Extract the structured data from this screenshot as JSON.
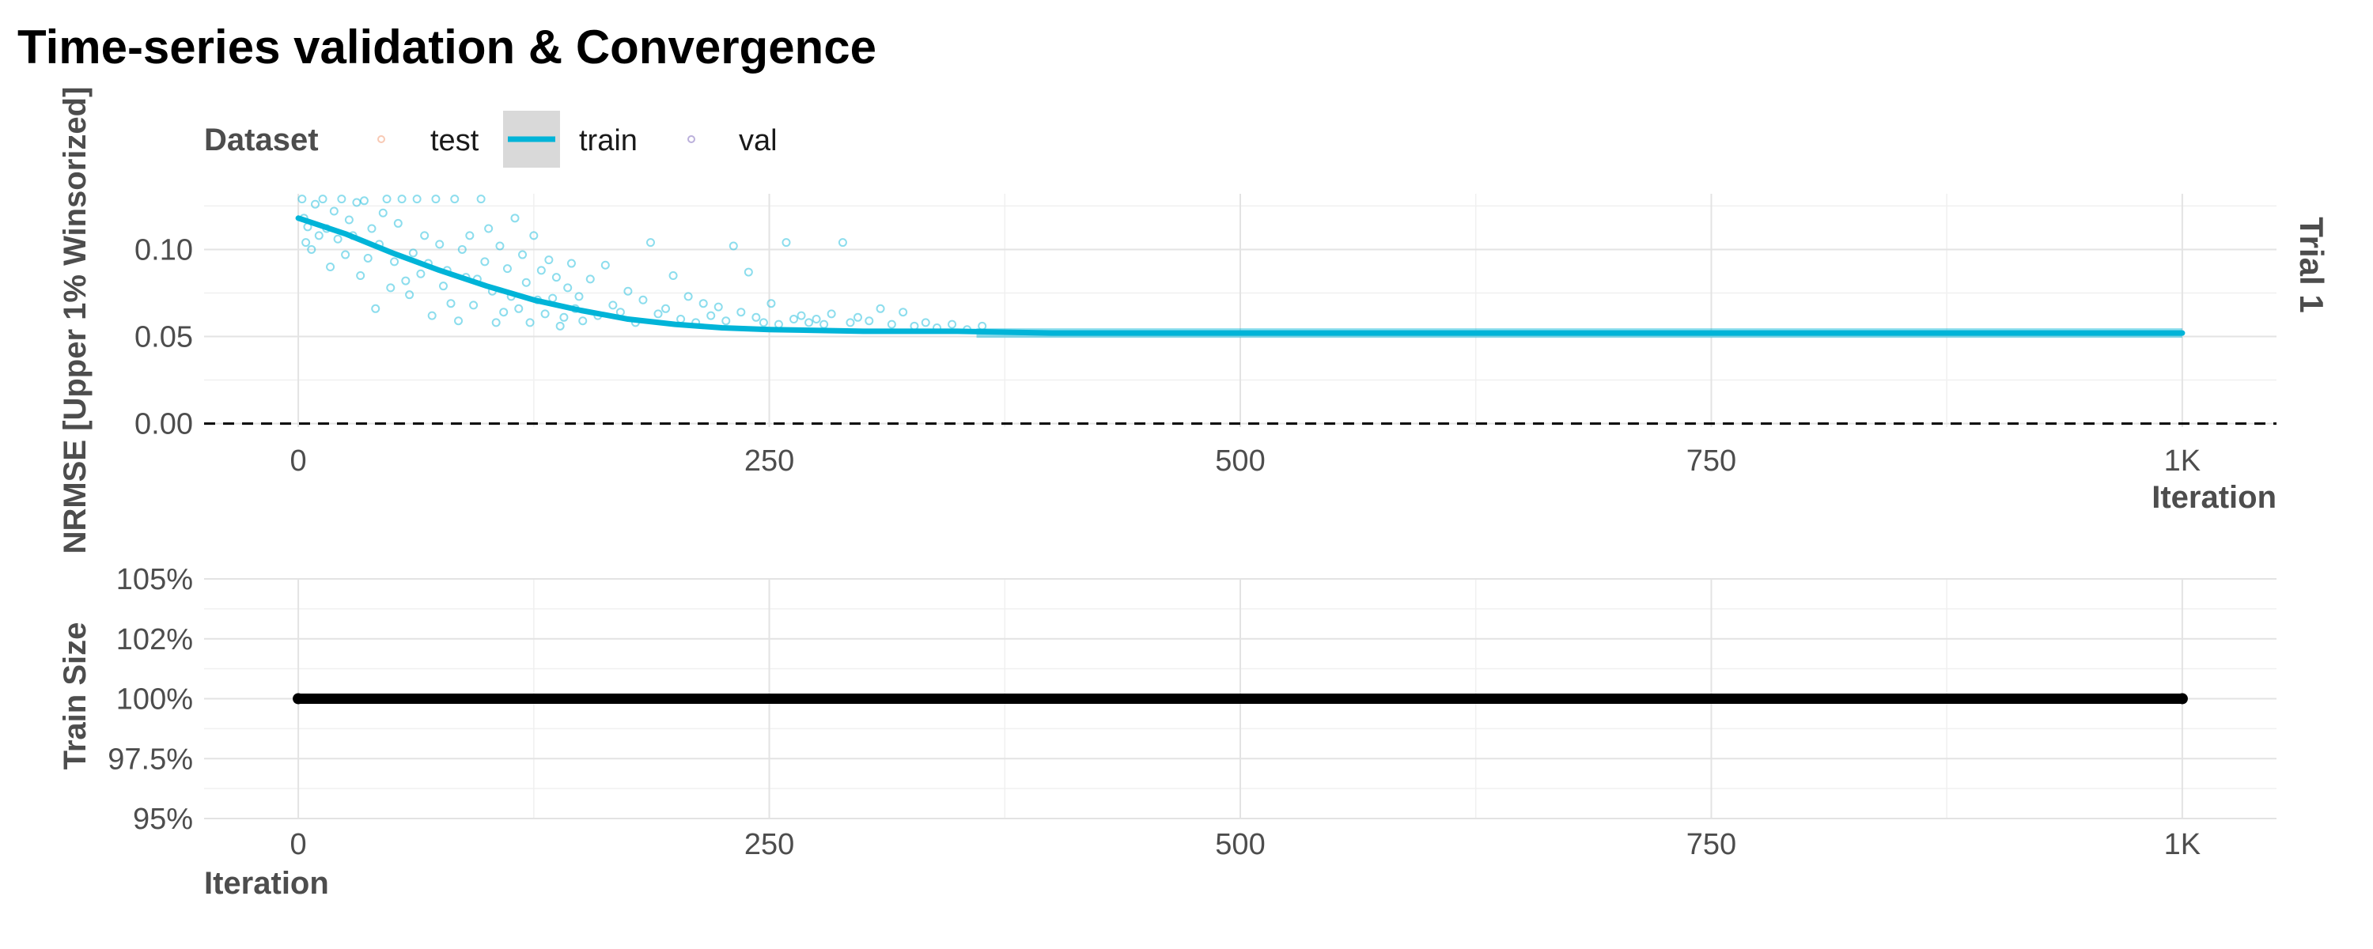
{
  "title": "Time-series validation & Convergence",
  "legend": {
    "title": "Dataset",
    "items": [
      {
        "label": "test",
        "color": "#f4a582",
        "style": "point"
      },
      {
        "label": "train",
        "color": "#00b4d8",
        "style": "line"
      },
      {
        "label": "val",
        "color": "#8e7cc3",
        "style": "point"
      }
    ]
  },
  "chart_data": [
    {
      "type": "scatter",
      "panel": "top",
      "strip_label": "Trial 1",
      "xlabel": "Iteration",
      "ylabel": "NRMSE [Upper 1% Winsorized]",
      "xlim": [
        -50,
        1050
      ],
      "ylim": [
        -0.002,
        0.132
      ],
      "x_ticks": [
        0,
        250,
        500,
        750,
        1000
      ],
      "x_tick_labels": [
        "0",
        "250",
        "500",
        "750",
        "1K"
      ],
      "y_ticks": [
        0.0,
        0.05,
        0.1
      ],
      "y_tick_labels": [
        "0.00",
        "0.05",
        "0.10"
      ],
      "reference_line": {
        "y": 0.0,
        "style": "dashed"
      },
      "series": [
        {
          "name": "train",
          "color": "#00b4d8",
          "points": [
            [
              2,
              0.129
            ],
            [
              3,
              0.118
            ],
            [
              4,
              0.104
            ],
            [
              5,
              0.113
            ],
            [
              7,
              0.1
            ],
            [
              9,
              0.126
            ],
            [
              11,
              0.108
            ],
            [
              13,
              0.129
            ],
            [
              15,
              0.112
            ],
            [
              17,
              0.09
            ],
            [
              19,
              0.122
            ],
            [
              21,
              0.106
            ],
            [
              23,
              0.129
            ],
            [
              25,
              0.097
            ],
            [
              27,
              0.117
            ],
            [
              29,
              0.108
            ],
            [
              31,
              0.127
            ],
            [
              33,
              0.085
            ],
            [
              35,
              0.128
            ],
            [
              37,
              0.095
            ],
            [
              39,
              0.112
            ],
            [
              41,
              0.066
            ],
            [
              43,
              0.103
            ],
            [
              45,
              0.121
            ],
            [
              47,
              0.129
            ],
            [
              49,
              0.078
            ],
            [
              51,
              0.093
            ],
            [
              53,
              0.115
            ],
            [
              55,
              0.129
            ],
            [
              57,
              0.082
            ],
            [
              59,
              0.074
            ],
            [
              61,
              0.098
            ],
            [
              63,
              0.129
            ],
            [
              65,
              0.086
            ],
            [
              67,
              0.108
            ],
            [
              69,
              0.092
            ],
            [
              71,
              0.062
            ],
            [
              73,
              0.129
            ],
            [
              75,
              0.103
            ],
            [
              77,
              0.079
            ],
            [
              79,
              0.088
            ],
            [
              81,
              0.069
            ],
            [
              83,
              0.129
            ],
            [
              85,
              0.059
            ],
            [
              87,
              0.1
            ],
            [
              89,
              0.084
            ],
            [
              91,
              0.108
            ],
            [
              93,
              0.068
            ],
            [
              95,
              0.083
            ],
            [
              97,
              0.129
            ],
            [
              99,
              0.093
            ],
            [
              101,
              0.112
            ],
            [
              103,
              0.076
            ],
            [
              105,
              0.058
            ],
            [
              107,
              0.102
            ],
            [
              109,
              0.064
            ],
            [
              111,
              0.089
            ],
            [
              113,
              0.073
            ],
            [
              115,
              0.118
            ],
            [
              117,
              0.066
            ],
            [
              119,
              0.097
            ],
            [
              121,
              0.081
            ],
            [
              123,
              0.058
            ],
            [
              125,
              0.108
            ],
            [
              127,
              0.071
            ],
            [
              129,
              0.088
            ],
            [
              131,
              0.063
            ],
            [
              133,
              0.094
            ],
            [
              135,
              0.072
            ],
            [
              137,
              0.084
            ],
            [
              139,
              0.056
            ],
            [
              141,
              0.061
            ],
            [
              143,
              0.078
            ],
            [
              145,
              0.092
            ],
            [
              147,
              0.066
            ],
            [
              149,
              0.073
            ],
            [
              151,
              0.059
            ],
            [
              155,
              0.083
            ],
            [
              159,
              0.062
            ],
            [
              163,
              0.091
            ],
            [
              167,
              0.068
            ],
            [
              171,
              0.064
            ],
            [
              175,
              0.076
            ],
            [
              179,
              0.058
            ],
            [
              183,
              0.071
            ],
            [
              187,
              0.104
            ],
            [
              191,
              0.063
            ],
            [
              195,
              0.066
            ],
            [
              199,
              0.085
            ],
            [
              203,
              0.06
            ],
            [
              207,
              0.073
            ],
            [
              211,
              0.058
            ],
            [
              215,
              0.069
            ],
            [
              219,
              0.062
            ],
            [
              223,
              0.067
            ],
            [
              227,
              0.059
            ],
            [
              231,
              0.102
            ],
            [
              235,
              0.064
            ],
            [
              239,
              0.087
            ],
            [
              243,
              0.061
            ],
            [
              247,
              0.058
            ],
            [
              251,
              0.069
            ],
            [
              255,
              0.057
            ],
            [
              259,
              0.104
            ],
            [
              263,
              0.06
            ],
            [
              267,
              0.062
            ],
            [
              271,
              0.058
            ],
            [
              275,
              0.06
            ],
            [
              279,
              0.057
            ],
            [
              283,
              0.063
            ],
            [
              289,
              0.104
            ],
            [
              293,
              0.058
            ],
            [
              297,
              0.061
            ],
            [
              303,
              0.059
            ],
            [
              309,
              0.066
            ],
            [
              315,
              0.057
            ],
            [
              321,
              0.064
            ],
            [
              327,
              0.056
            ],
            [
              333,
              0.058
            ],
            [
              339,
              0.055
            ],
            [
              347,
              0.057
            ],
            [
              355,
              0.054
            ],
            [
              363,
              0.056
            ]
          ],
          "trend": {
            "x": [
              0,
              25,
              50,
              75,
              100,
              125,
              150,
              175,
              200,
              225,
              250,
              300,
              350,
              400,
              500,
              600,
              700,
              800,
              900,
              1000
            ],
            "y": [
              0.118,
              0.109,
              0.098,
              0.088,
              0.079,
              0.071,
              0.065,
              0.06,
              0.057,
              0.055,
              0.054,
              0.053,
              0.053,
              0.052,
              0.052,
              0.052,
              0.052,
              0.052,
              0.052,
              0.052
            ]
          }
        }
      ]
    },
    {
      "type": "line",
      "panel": "bottom",
      "xlabel": "Iteration",
      "ylabel": "Train Size",
      "xlim": [
        -50,
        1050
      ],
      "ylim": [
        0.95,
        1.05
      ],
      "x_ticks": [
        0,
        250,
        500,
        750,
        1000
      ],
      "x_tick_labels": [
        "0",
        "250",
        "500",
        "750",
        "1K"
      ],
      "y_ticks": [
        0.95,
        0.975,
        1.0,
        1.025,
        1.05
      ],
      "y_tick_labels": [
        "95%",
        "97.5%",
        "100%",
        "102%",
        "105%"
      ],
      "series": [
        {
          "color": "#000000",
          "x_range": [
            0,
            1000
          ],
          "value": 1.0
        }
      ]
    }
  ]
}
